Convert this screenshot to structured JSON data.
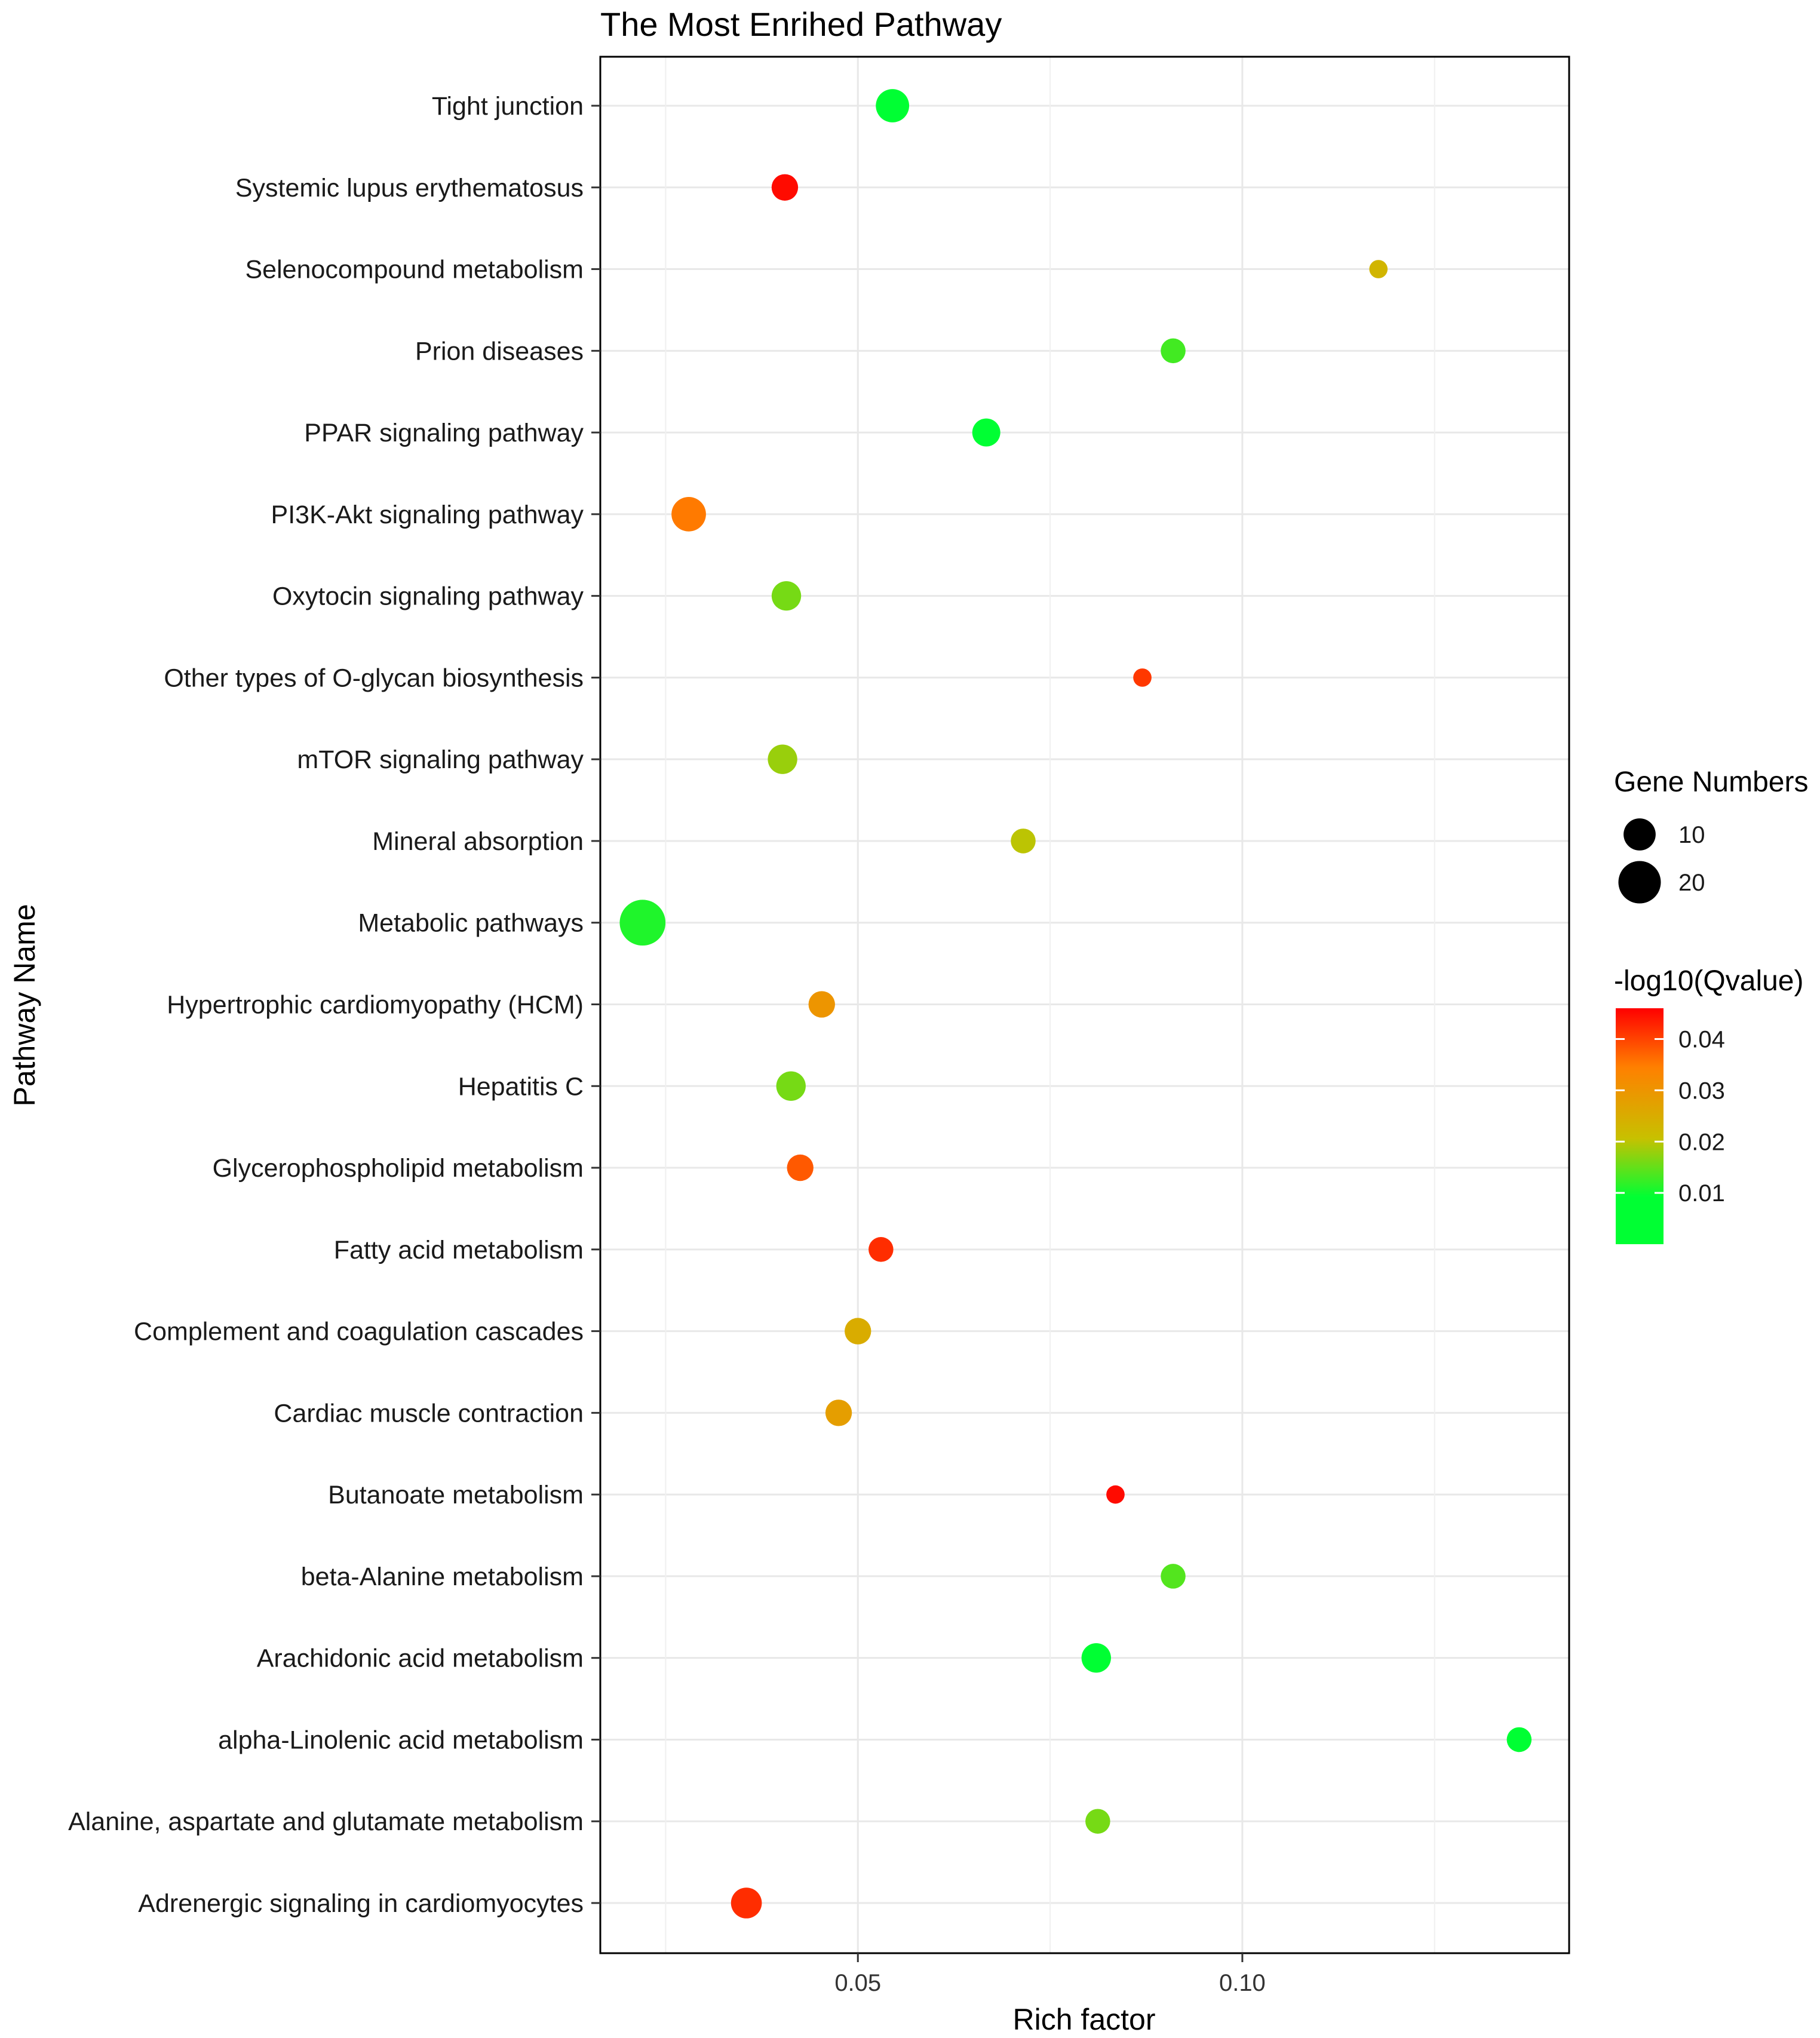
{
  "chart_data": {
    "type": "scatter",
    "title": "The Most Enrihed Pathway",
    "xlabel": "Rich factor",
    "ylabel": "Pathway Name",
    "xlim": [
      0.0165,
      0.1425
    ],
    "xticks": [
      0.05,
      0.1
    ],
    "xtick_labels": [
      "0.05",
      "0.10"
    ],
    "xminor": [
      0.025,
      0.075,
      0.125
    ],
    "grid": true,
    "points": [
      {
        "pathway": "Tight junction",
        "rich_factor": 0.0545,
        "gene_numbers": 11,
        "qvalue": 0.002
      },
      {
        "pathway": "Systemic lupus erythematosus",
        "rich_factor": 0.0405,
        "gene_numbers": 6,
        "qvalue": 0.045
      },
      {
        "pathway": "Selenocompound metabolism",
        "rich_factor": 0.1177,
        "gene_numbers": 2,
        "qvalue": 0.023
      },
      {
        "pathway": "Prion diseases",
        "rich_factor": 0.091,
        "gene_numbers": 5,
        "qvalue": 0.013
      },
      {
        "pathway": "PPAR signaling pathway",
        "rich_factor": 0.0667,
        "gene_numbers": 7,
        "qvalue": 0.004
      },
      {
        "pathway": "PI3K-Akt signaling pathway",
        "rich_factor": 0.028,
        "gene_numbers": 12,
        "qvalue": 0.035
      },
      {
        "pathway": "Oxytocin signaling pathway",
        "rich_factor": 0.0407,
        "gene_numbers": 8,
        "qvalue": 0.016
      },
      {
        "pathway": "Other types of O-glycan biosynthesis",
        "rich_factor": 0.087,
        "gene_numbers": 2,
        "qvalue": 0.041
      },
      {
        "pathway": "mTOR signaling pathway",
        "rich_factor": 0.0402,
        "gene_numbers": 8,
        "qvalue": 0.018
      },
      {
        "pathway": "Mineral absorption",
        "rich_factor": 0.0715,
        "gene_numbers": 5,
        "qvalue": 0.02
      },
      {
        "pathway": "Metabolic pathways",
        "rich_factor": 0.022,
        "gene_numbers": 24,
        "qvalue": 0.011
      },
      {
        "pathway": "Hypertrophic cardiomyopathy (HCM)",
        "rich_factor": 0.0453,
        "gene_numbers": 6,
        "qvalue": 0.03
      },
      {
        "pathway": "Hepatitis C",
        "rich_factor": 0.0413,
        "gene_numbers": 8,
        "qvalue": 0.016
      },
      {
        "pathway": "Glycerophospholipid metabolism",
        "rich_factor": 0.0425,
        "gene_numbers": 6,
        "qvalue": 0.038
      },
      {
        "pathway": "Fatty acid metabolism",
        "rich_factor": 0.053,
        "gene_numbers": 5,
        "qvalue": 0.042
      },
      {
        "pathway": "Complement and coagulation cascades",
        "rich_factor": 0.05,
        "gene_numbers": 6,
        "qvalue": 0.025
      },
      {
        "pathway": "Cardiac muscle contraction",
        "rich_factor": 0.0475,
        "gene_numbers": 6,
        "qvalue": 0.028
      },
      {
        "pathway": "Butanoate metabolism",
        "rich_factor": 0.0835,
        "gene_numbers": 2,
        "qvalue": 0.045
      },
      {
        "pathway": "beta-Alanine metabolism",
        "rich_factor": 0.091,
        "gene_numbers": 5,
        "qvalue": 0.014
      },
      {
        "pathway": "Arachidonic acid metabolism",
        "rich_factor": 0.081,
        "gene_numbers": 8,
        "qvalue": 0.005
      },
      {
        "pathway": "alpha-Linolenic acid metabolism",
        "rich_factor": 0.136,
        "gene_numbers": 5,
        "qvalue": 0.008
      },
      {
        "pathway": "Alanine, aspartate and glutamate metabolism",
        "rich_factor": 0.0812,
        "gene_numbers": 5,
        "qvalue": 0.016
      },
      {
        "pathway": "Adrenergic signaling in cardiomyocytes",
        "rich_factor": 0.0355,
        "gene_numbers": 9,
        "qvalue": 0.042
      }
    ],
    "size_legend": {
      "title": "Gene Numbers",
      "entries": [
        {
          "value": 10,
          "label": "10"
        },
        {
          "value": 20,
          "label": "20"
        }
      ]
    },
    "color_legend": {
      "title": "-log10(Qvalue)",
      "range": [
        0.0,
        0.046
      ],
      "ticks": [
        {
          "value": 0.04,
          "label": "0.04"
        },
        {
          "value": 0.03,
          "label": "0.03"
        },
        {
          "value": 0.02,
          "label": "0.02"
        },
        {
          "value": 0.01,
          "label": "0.01"
        }
      ],
      "colors": {
        "low": "#00ff33",
        "mid": "#c8c000",
        "high": "#ff0000"
      }
    },
    "colors": {
      "panel_border": "#000000",
      "grid": "#e8e8e8",
      "legend_point": "#000000"
    }
  }
}
